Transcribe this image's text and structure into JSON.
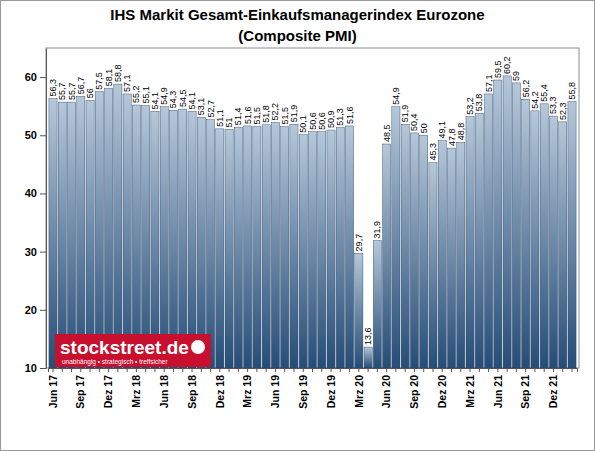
{
  "chart_data": {
    "type": "bar",
    "title": "IHS Markit Gesamt-Einkaufsmanagerindex Eurozone",
    "subtitle": "(Composite PMI)",
    "annotations": [
      {
        "text": "stockstreet.de"
      },
      {
        "text": "unabhängig • strategisch • treffsicher"
      }
    ],
    "categories": [
      "Jun 17",
      null,
      null,
      "Sep 17",
      null,
      null,
      "Dez 17",
      null,
      null,
      "Mrz 18",
      null,
      null,
      "Jun 18",
      null,
      null,
      "Sep 18",
      null,
      null,
      "Dez 18",
      null,
      null,
      "Mrz 19",
      null,
      null,
      "Jun 19",
      null,
      null,
      "Sep 19",
      null,
      null,
      "Dez 19",
      null,
      null,
      "Mrz 20",
      null,
      null,
      "Jun 20",
      null,
      null,
      "Sep 20",
      null,
      null,
      "Dez 20",
      null,
      null,
      "Mrz 21",
      null,
      null,
      "Jun 21",
      null,
      null,
      "Sep 21",
      null,
      null,
      "Dez 21",
      null,
      null
    ],
    "values": [
      56.3,
      55.7,
      55.7,
      56.7,
      56,
      57.5,
      58.1,
      58.8,
      57.1,
      55.2,
      55.1,
      54.1,
      54.9,
      54.3,
      54.5,
      54.1,
      53.1,
      52.7,
      51.1,
      51,
      51.4,
      51.6,
      51.5,
      51.8,
      52.2,
      51.5,
      51.9,
      50.1,
      50.6,
      50.6,
      50.9,
      51.3,
      51.6,
      29.7,
      13.6,
      31.9,
      48.5,
      54.9,
      51.9,
      50.4,
      50,
      45.3,
      49.1,
      47.8,
      48.8,
      53.2,
      53.8,
      57.1,
      59.5,
      60.2,
      59,
      56.2,
      54.2,
      55.4,
      53.3,
      52.3,
      55.8
    ],
    "value_labels": [
      "56,3",
      "55,7",
      "55,7",
      "56,7",
      "56",
      "57,5",
      "58,1",
      "58,8",
      "57,1",
      "55,2",
      "55,1",
      "54,1",
      "54,9",
      "54,3",
      "54,5",
      "54,1",
      "53,1",
      "52,7",
      "51,1",
      "51",
      "51,4",
      "51,6",
      "51,5",
      "51,8",
      "52,2",
      "51,5",
      "51,9",
      "50,1",
      "50,6",
      "50,6",
      "50,9",
      "51,3",
      "51,6",
      "29,7",
      "13,6",
      "31,9",
      "48,5",
      "54,9",
      "51,9",
      "50,4",
      "50",
      "45,3",
      "49,1",
      "47,8",
      "48,8",
      "53,2",
      "53,8",
      "57,1",
      "59,5",
      "60,2",
      "59",
      "56,2",
      "54,2",
      "55,4",
      "53,3",
      "52,3",
      "55,8"
    ],
    "color": "#2f5f93",
    "ylim": [
      10,
      65
    ],
    "yticks": [
      10,
      20,
      30,
      40,
      50,
      60
    ],
    "grid": false,
    "data_labels": true
  }
}
